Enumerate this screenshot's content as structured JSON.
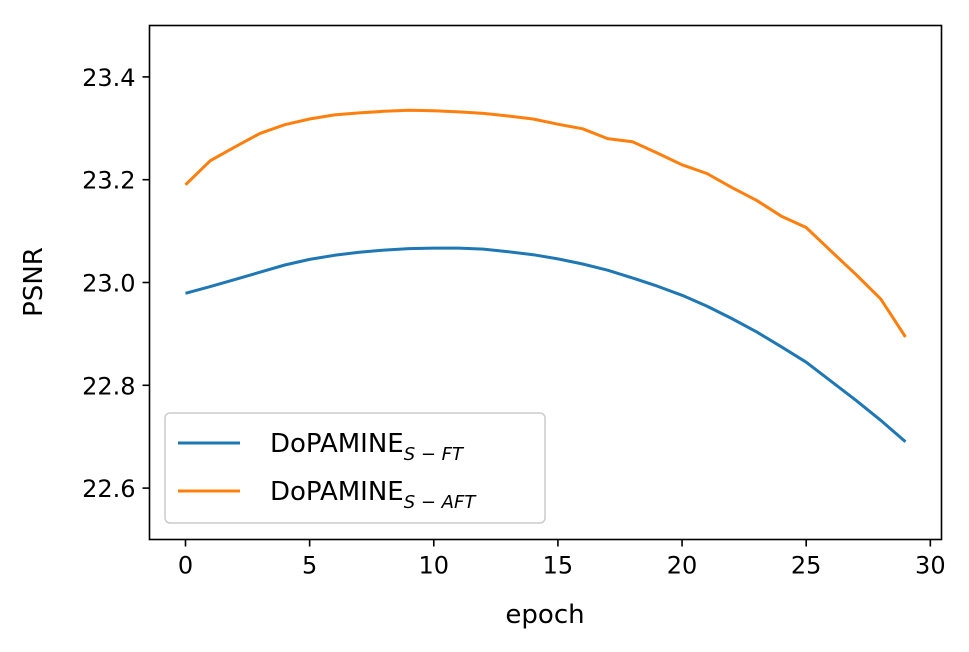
{
  "chart_data": {
    "type": "line",
    "title": "",
    "xlabel": "epoch",
    "ylabel": "PSNR",
    "xlim": [
      -1.45,
      30.45
    ],
    "ylim": [
      22.5,
      23.5
    ],
    "xticks": [
      0,
      5,
      10,
      15,
      20,
      25,
      30
    ],
    "xtick_labels": [
      "0",
      "5",
      "10",
      "15",
      "20",
      "25",
      "30"
    ],
    "yticks": [
      22.6,
      22.8,
      23.0,
      23.2,
      23.4
    ],
    "ytick_labels": [
      "22.6",
      "22.8",
      "23.0",
      "23.2",
      "23.4"
    ],
    "grid": false,
    "legend_position": "lower-left",
    "x": [
      0,
      1,
      2,
      3,
      4,
      5,
      6,
      7,
      8,
      9,
      10,
      11,
      12,
      13,
      14,
      15,
      16,
      17,
      18,
      19,
      20,
      21,
      22,
      23,
      24,
      25,
      26,
      27,
      28,
      29
    ],
    "series": [
      {
        "name": "DoPAMINE",
        "subscript": "S − FT",
        "color": "#1f77b4",
        "values": [
          22.979,
          22.992,
          23.006,
          23.02,
          23.034,
          23.045,
          23.053,
          23.059,
          23.063,
          23.066,
          23.067,
          23.067,
          23.065,
          23.06,
          23.054,
          23.046,
          23.036,
          23.024,
          23.009,
          22.993,
          22.975,
          22.954,
          22.93,
          22.904,
          22.875,
          22.845,
          22.808,
          22.771,
          22.732,
          22.69
        ]
      },
      {
        "name": "DoPAMINE",
        "subscript": "S − AFT",
        "color": "#ff7f0e",
        "values": [
          23.19,
          23.237,
          23.264,
          23.29,
          23.307,
          23.318,
          23.326,
          23.33,
          23.333,
          23.335,
          23.334,
          23.332,
          23.329,
          23.324,
          23.318,
          23.308,
          23.299,
          23.28,
          23.274,
          23.252,
          23.229,
          23.212,
          23.185,
          23.16,
          23.129,
          23.107,
          23.061,
          23.016,
          22.968,
          22.894
        ]
      }
    ]
  }
}
